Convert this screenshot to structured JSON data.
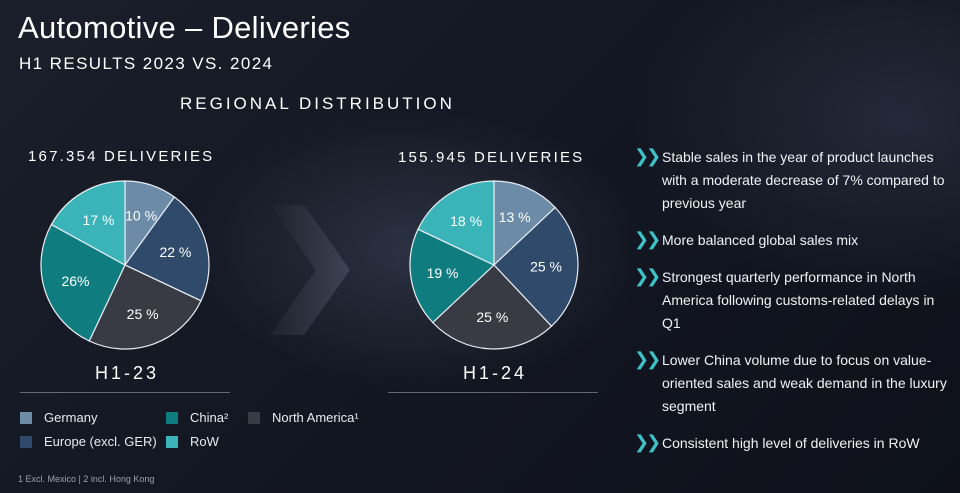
{
  "header": {
    "title": "Automotive – Deliveries",
    "subtitle": "H1 RESULTS 2023 VS. 2024",
    "section_title": "REGIONAL DISTRIBUTION"
  },
  "colors": {
    "germany": "#6b8ba6",
    "europe": "#2f4a6a",
    "north_america": "#393b44",
    "china": "#0f7d80",
    "row": "#3ab4b9",
    "accent": "#3ec1c8"
  },
  "chart_data": [
    {
      "type": "pie",
      "title": "167.354 DELIVERIES",
      "period": "H1-23",
      "slices": [
        {
          "key": "germany",
          "value": 10,
          "label": "10 %"
        },
        {
          "key": "europe",
          "value": 22,
          "label": "22 %"
        },
        {
          "key": "north_america",
          "value": 25,
          "label": "25 %"
        },
        {
          "key": "china",
          "value": 26,
          "label": "26%"
        },
        {
          "key": "row",
          "value": 17,
          "label": "17 %"
        }
      ]
    },
    {
      "type": "pie",
      "title": "155.945 DELIVERIES",
      "period": "H1-24",
      "slices": [
        {
          "key": "germany",
          "value": 13,
          "label": "13 %"
        },
        {
          "key": "europe",
          "value": 25,
          "label": "25 %"
        },
        {
          "key": "north_america",
          "value": 25,
          "label": "25 %"
        },
        {
          "key": "china",
          "value": 19,
          "label": "19 %"
        },
        {
          "key": "row",
          "value": 18,
          "label": "18 %"
        }
      ]
    }
  ],
  "legend": {
    "germany": "Germany",
    "europe": "Europe (excl. GER)",
    "china": "China²",
    "row": "RoW",
    "north_america": "North America¹"
  },
  "bullets": [
    "Stable sales in the year of product launches with a moderate decrease of 7% compared to previous year",
    "More balanced global sales mix",
    "Strongest quarterly performance in North America following customs-related delays in Q1",
    "Lower China volume due to focus on value-oriented sales and weak demand in the luxury segment",
    "Consistent high level of deliveries in RoW"
  ],
  "bullet_marker": "❯❯",
  "footnote": "1 Excl. Mexico | 2 incl. Hong Kong"
}
